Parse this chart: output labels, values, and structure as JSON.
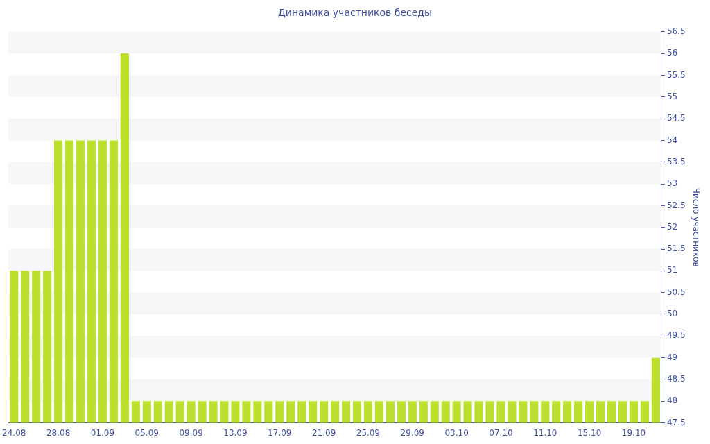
{
  "chart_data": {
    "type": "bar",
    "title": "Динамика участников беседы",
    "ylabel": "Число участников",
    "categories": [
      "24.08",
      null,
      null,
      null,
      "28.08",
      null,
      null,
      null,
      "01.09",
      null,
      null,
      null,
      "05.09",
      null,
      null,
      null,
      "09.09",
      null,
      null,
      null,
      "13.09",
      null,
      null,
      null,
      "17.09",
      null,
      null,
      null,
      "21.09",
      null,
      null,
      null,
      "25.09",
      null,
      null,
      null,
      "29.09",
      null,
      null,
      null,
      "03.10",
      null,
      null,
      null,
      "07.10",
      null,
      null,
      null,
      "11.10",
      null,
      null,
      null,
      "15.10",
      null,
      null,
      null,
      "19.10",
      null,
      null
    ],
    "values": [
      51,
      51,
      51,
      51,
      54,
      54,
      54,
      54,
      54,
      54,
      56,
      48,
      48,
      48,
      48,
      48,
      48,
      48,
      48,
      48,
      48,
      48,
      48,
      48,
      48,
      48,
      48,
      48,
      48,
      48,
      48,
      48,
      48,
      48,
      48,
      48,
      48,
      48,
      48,
      48,
      48,
      48,
      48,
      48,
      48,
      48,
      48,
      48,
      48,
      48,
      48,
      48,
      48,
      48,
      48,
      48,
      48,
      48,
      49
    ],
    "color": "#bde02f",
    "ylim": [
      47.5,
      56.5
    ],
    "yticks": [
      47.5,
      48,
      48.5,
      49,
      49.5,
      50,
      50.5,
      51,
      51.5,
      52,
      52.5,
      53,
      53.5,
      54,
      54.5,
      55,
      55.5,
      56,
      56.5
    ],
    "legend": false
  }
}
